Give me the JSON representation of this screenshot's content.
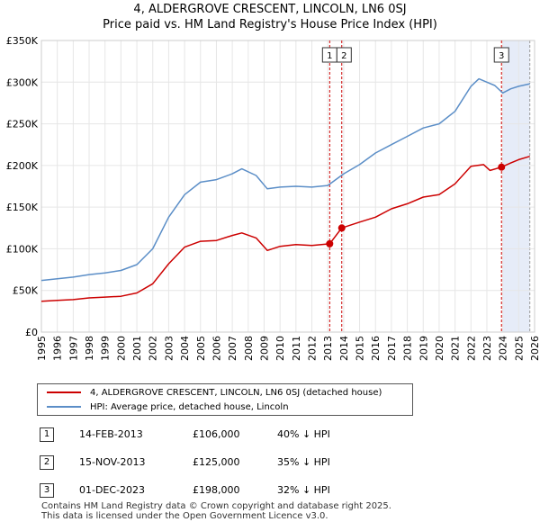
{
  "chart_data": {
    "type": "line",
    "title": "4, ALDERGROVE CRESCENT, LINCOLN, LN6 0SJ",
    "subtitle": "Price paid vs. HM Land Registry's House Price Index (HPI)",
    "xlim": [
      1995,
      2026
    ],
    "ylim": [
      0,
      350000
    ],
    "x_ticks": [
      "1995",
      "1996",
      "1997",
      "1998",
      "1999",
      "2000",
      "2001",
      "2002",
      "2003",
      "2004",
      "2005",
      "2006",
      "2007",
      "2008",
      "2009",
      "2010",
      "2011",
      "2012",
      "2013",
      "2014",
      "2015",
      "2016",
      "2017",
      "2018",
      "2019",
      "2020",
      "2021",
      "2022",
      "2023",
      "2024",
      "2025",
      "2026"
    ],
    "y_ticks": [
      {
        "value": 0,
        "label": "£0"
      },
      {
        "value": 50000,
        "label": "£50K"
      },
      {
        "value": 100000,
        "label": "£100K"
      },
      {
        "value": 150000,
        "label": "£150K"
      },
      {
        "value": 200000,
        "label": "£200K"
      },
      {
        "value": 250000,
        "label": "£250K"
      },
      {
        "value": 300000,
        "label": "£300K"
      },
      {
        "value": 350000,
        "label": "£350K"
      }
    ],
    "grid": true,
    "series": [
      {
        "name": "4, ALDERGROVE CRESCENT, LINCOLN, LN6 0SJ (detached house)",
        "color": "#cc0000",
        "x": [
          1995.0,
          1996.0,
          1997.0,
          1998.0,
          1999.0,
          2000.0,
          2001.0,
          2002.0,
          2003.0,
          2004.0,
          2005.0,
          2006.0,
          2007.0,
          2007.6,
          2008.5,
          2009.2,
          2010.0,
          2011.0,
          2012.0,
          2013.12,
          2013.88,
          2015.0,
          2016.0,
          2017.0,
          2018.0,
          2019.0,
          2020.0,
          2021.0,
          2022.0,
          2022.8,
          2023.2,
          2023.92,
          2024.5,
          2025.0,
          2025.7
        ],
        "values": [
          37000,
          38000,
          39000,
          41000,
          42000,
          43000,
          47000,
          58000,
          82000,
          102000,
          109000,
          110000,
          116000,
          119000,
          113000,
          98000,
          103000,
          105000,
          104000,
          106000,
          125000,
          132000,
          138000,
          148000,
          154000,
          162000,
          165000,
          178000,
          199000,
          201000,
          194000,
          198000,
          203000,
          207000,
          211000
        ]
      },
      {
        "name": "HPI: Average price, detached house, Lincoln",
        "color": "#5b8ec7",
        "x": [
          1995.0,
          1996.0,
          1997.0,
          1998.0,
          1999.0,
          2000.0,
          2001.0,
          2002.0,
          2003.0,
          2004.0,
          2005.0,
          2006.0,
          2007.0,
          2007.6,
          2008.5,
          2009.2,
          2010.0,
          2011.0,
          2012.0,
          2013.0,
          2014.0,
          2015.0,
          2016.0,
          2017.0,
          2018.0,
          2019.0,
          2020.0,
          2021.0,
          2022.0,
          2022.5,
          2023.0,
          2023.5,
          2024.0,
          2024.5,
          2025.0,
          2025.7
        ],
        "values": [
          62000,
          64000,
          66000,
          69000,
          71000,
          74000,
          81000,
          100000,
          138000,
          165000,
          180000,
          183000,
          190000,
          196000,
          188000,
          172000,
          174000,
          175000,
          174000,
          176000,
          190000,
          201000,
          215000,
          225000,
          235000,
          245000,
          250000,
          265000,
          295000,
          304000,
          300000,
          296000,
          287000,
          292000,
          295000,
          298000
        ]
      }
    ],
    "transactions": [
      {
        "id": "1",
        "date": "14-FEB-2013",
        "price": "£106,000",
        "hpi": "40% ↓ HPI",
        "x": 2013.12,
        "value": 106000
      },
      {
        "id": "2",
        "date": "15-NOV-2013",
        "price": "£125,000",
        "hpi": "35% ↓ HPI",
        "x": 2013.88,
        "value": 125000
      },
      {
        "id": "3",
        "date": "01-DEC-2023",
        "price": "£198,000",
        "hpi": "32% ↓ HPI",
        "x": 2023.92,
        "value": 198000
      }
    ],
    "shaded_band": {
      "from": 2024.0,
      "to": 2025.7
    }
  },
  "footer": {
    "line1": "Contains HM Land Registry data © Crown copyright and database right 2025.",
    "line2": "This data is licensed under the Open Government Licence v3.0."
  }
}
